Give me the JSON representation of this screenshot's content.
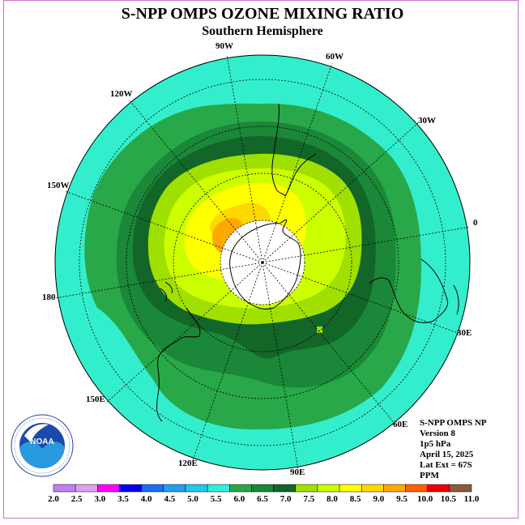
{
  "header": {
    "title": "S-NPP OMPS OZONE MIXING RATIO",
    "subtitle": "Southern Hemisphere"
  },
  "map": {
    "projection": "south polar stereographic",
    "longitude_labels": [
      "90W",
      "60W",
      "30W",
      "0",
      "30E",
      "60E",
      "90E",
      "120E",
      "150E",
      "180",
      "150W",
      "120W"
    ],
    "colors": {
      "ocean_fill": "#33eecc",
      "pole_hole": "#ffffff"
    }
  },
  "info": {
    "product": "S-NPP OMPS NP",
    "version": "Version 8",
    "level": "1p5 hPa",
    "date": "April 15, 2025",
    "lat_ext": "Lat Ext = 67S",
    "units": "PPM"
  },
  "colorbar": {
    "ticks": [
      "2.0",
      "2.5",
      "3.0",
      "3.5",
      "4.0",
      "4.5",
      "5.0",
      "5.5",
      "6.0",
      "6.5",
      "7.0",
      "7.5",
      "8.0",
      "8.5",
      "9.0",
      "9.5",
      "10.0",
      "10.5",
      "11.0"
    ],
    "colors": [
      "#c080f0",
      "#e0a0f0",
      "#ff00ff",
      "#0000ee",
      "#1870ee",
      "#20a0f0",
      "#20c8f0",
      "#30eedd",
      "#28a848",
      "#1a8838",
      "#126628",
      "#a0e000",
      "#ccff00",
      "#ffff00",
      "#ffd800",
      "#ffa800",
      "#ff6000",
      "#ee0000",
      "#8a5a3a"
    ]
  },
  "logo": {
    "text": "NOAA"
  }
}
